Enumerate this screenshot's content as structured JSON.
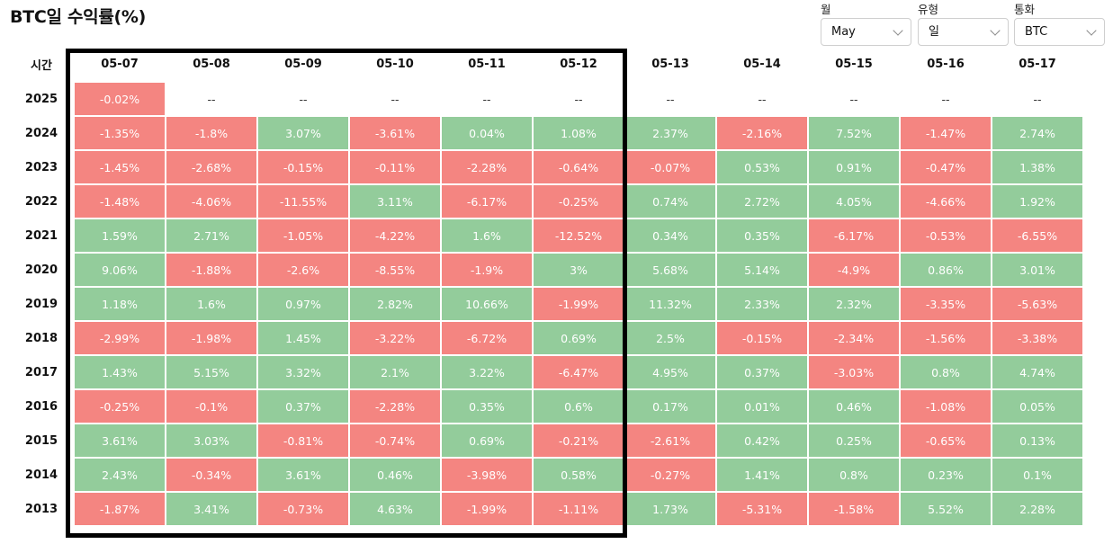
{
  "title": "BTC일 수익률(%)",
  "filters": {
    "month": {
      "label": "월",
      "value": "May"
    },
    "type": {
      "label": "유형",
      "value": "일"
    },
    "currency": {
      "label": "통화",
      "value": "BTC"
    }
  },
  "table": {
    "corner_label": "시간",
    "dates": [
      "05-07",
      "05-08",
      "05-09",
      "05-10",
      "05-11",
      "05-12",
      "05-13",
      "05-14",
      "05-15",
      "05-16",
      "05-17"
    ],
    "rows": [
      {
        "year": "2025",
        "values": [
          "-0.02%",
          "--",
          "--",
          "--",
          "--",
          "--",
          "--",
          "--",
          "--",
          "--",
          "--"
        ]
      },
      {
        "year": "2024",
        "values": [
          "-1.35%",
          "-1.8%",
          "3.07%",
          "-3.61%",
          "0.04%",
          "1.08%",
          "2.37%",
          "-2.16%",
          "7.52%",
          "-1.47%",
          "2.74%"
        ]
      },
      {
        "year": "2023",
        "values": [
          "-1.45%",
          "-2.68%",
          "-0.15%",
          "-0.11%",
          "-2.28%",
          "-0.64%",
          "-0.07%",
          "0.53%",
          "0.91%",
          "-0.47%",
          "1.38%"
        ]
      },
      {
        "year": "2022",
        "values": [
          "-1.48%",
          "-4.06%",
          "-11.55%",
          "3.11%",
          "-6.17%",
          "-0.25%",
          "0.74%",
          "2.72%",
          "4.05%",
          "-4.66%",
          "1.92%"
        ]
      },
      {
        "year": "2021",
        "values": [
          "1.59%",
          "2.71%",
          "-1.05%",
          "-4.22%",
          "1.6%",
          "-12.52%",
          "0.34%",
          "0.35%",
          "-6.17%",
          "-0.53%",
          "-6.55%"
        ]
      },
      {
        "year": "2020",
        "values": [
          "9.06%",
          "-1.88%",
          "-2.6%",
          "-8.55%",
          "-1.9%",
          "3%",
          "5.68%",
          "5.14%",
          "-4.9%",
          "0.86%",
          "3.01%"
        ]
      },
      {
        "year": "2019",
        "values": [
          "1.18%",
          "1.6%",
          "0.97%",
          "2.82%",
          "10.66%",
          "-1.99%",
          "11.32%",
          "2.33%",
          "2.32%",
          "-3.35%",
          "-5.63%"
        ]
      },
      {
        "year": "2018",
        "values": [
          "-2.99%",
          "-1.98%",
          "1.45%",
          "-3.22%",
          "-6.72%",
          "0.69%",
          "2.5%",
          "-0.15%",
          "-2.34%",
          "-1.56%",
          "-3.38%"
        ]
      },
      {
        "year": "2017",
        "values": [
          "1.43%",
          "5.15%",
          "3.32%",
          "2.1%",
          "3.22%",
          "-6.47%",
          "4.95%",
          "0.37%",
          "-3.03%",
          "0.8%",
          "4.74%"
        ]
      },
      {
        "year": "2016",
        "values": [
          "-0.25%",
          "-0.1%",
          "0.37%",
          "-2.28%",
          "0.35%",
          "0.6%",
          "0.17%",
          "0.01%",
          "0.46%",
          "-1.08%",
          "0.05%"
        ]
      },
      {
        "year": "2015",
        "values": [
          "3.61%",
          "3.03%",
          "-0.81%",
          "-0.74%",
          "0.69%",
          "-0.21%",
          "-2.61%",
          "0.42%",
          "0.25%",
          "-0.65%",
          "0.13%"
        ]
      },
      {
        "year": "2014",
        "values": [
          "2.43%",
          "-0.34%",
          "3.61%",
          "0.46%",
          "-3.98%",
          "0.58%",
          "-0.27%",
          "1.41%",
          "0.8%",
          "0.23%",
          "0.1%"
        ]
      },
      {
        "year": "2013",
        "values": [
          "-1.87%",
          "3.41%",
          "-0.73%",
          "4.63%",
          "-1.99%",
          "-1.11%",
          "1.73%",
          "-5.31%",
          "-1.58%",
          "5.52%",
          "2.28%"
        ]
      }
    ]
  },
  "colors": {
    "positive": "#93cc9b",
    "negative": "#f48581",
    "highlight_border": "#000000"
  }
}
